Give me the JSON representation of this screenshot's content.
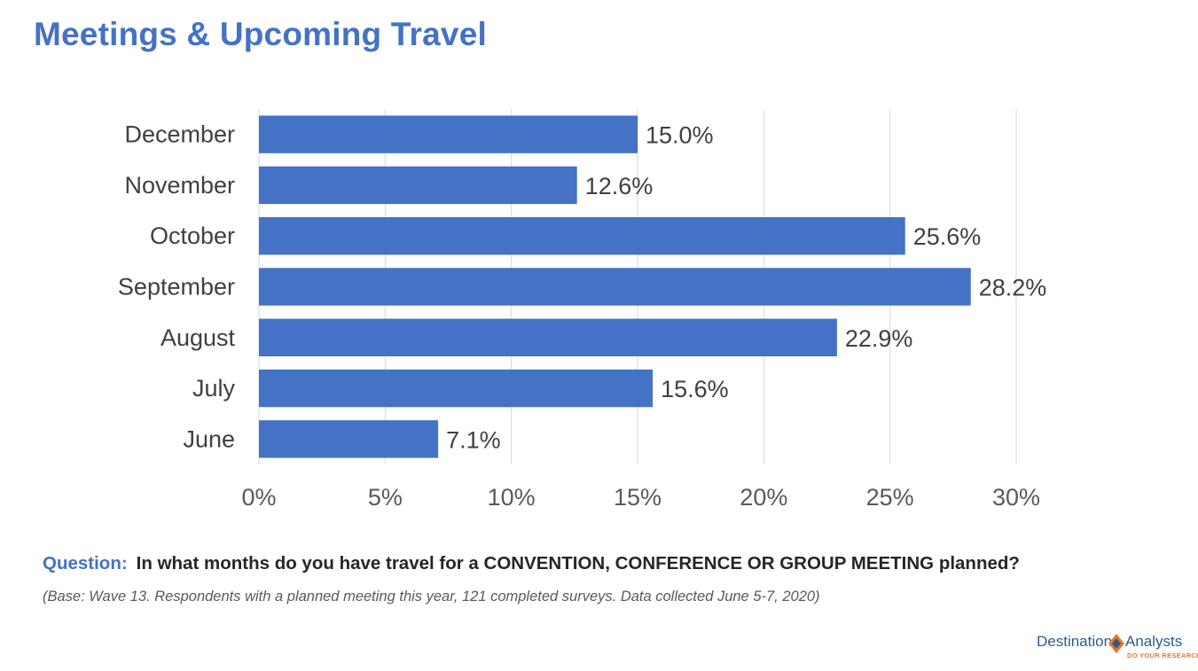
{
  "title": "Meetings & Upcoming Travel",
  "question": {
    "prefix": "Question:",
    "text": "In what months do you have travel for a CONVENTION, CONFERENCE OR GROUP MEETING planned?"
  },
  "base_note": "(Base: Wave 13. Respondents with a planned meeting this year, 121 completed surveys. Data collected June 5-7, 2020)",
  "brand": {
    "left": "Destination",
    "right": "Analysts",
    "tagline": "DO YOUR RESEARCH",
    "colors": {
      "blue": "#2e5a8f",
      "orange": "#e8772e"
    }
  },
  "chart_data": {
    "type": "bar",
    "orientation": "horizontal",
    "title": "",
    "categories": [
      "December",
      "November",
      "October",
      "September",
      "August",
      "July",
      "June"
    ],
    "values": [
      15.0,
      12.6,
      25.6,
      28.2,
      22.9,
      15.6,
      7.1
    ],
    "value_labels": [
      "15.0%",
      "12.6%",
      "25.6%",
      "28.2%",
      "22.9%",
      "15.6%",
      "7.1%"
    ],
    "xlim": [
      0,
      30
    ],
    "xticks": [
      0,
      5,
      10,
      15,
      20,
      25,
      30
    ],
    "xtick_labels": [
      "0%",
      "5%",
      "10%",
      "15%",
      "20%",
      "25%",
      "30%"
    ],
    "grid": "vertical",
    "legend": "none",
    "bar_color": "#4472c4"
  }
}
